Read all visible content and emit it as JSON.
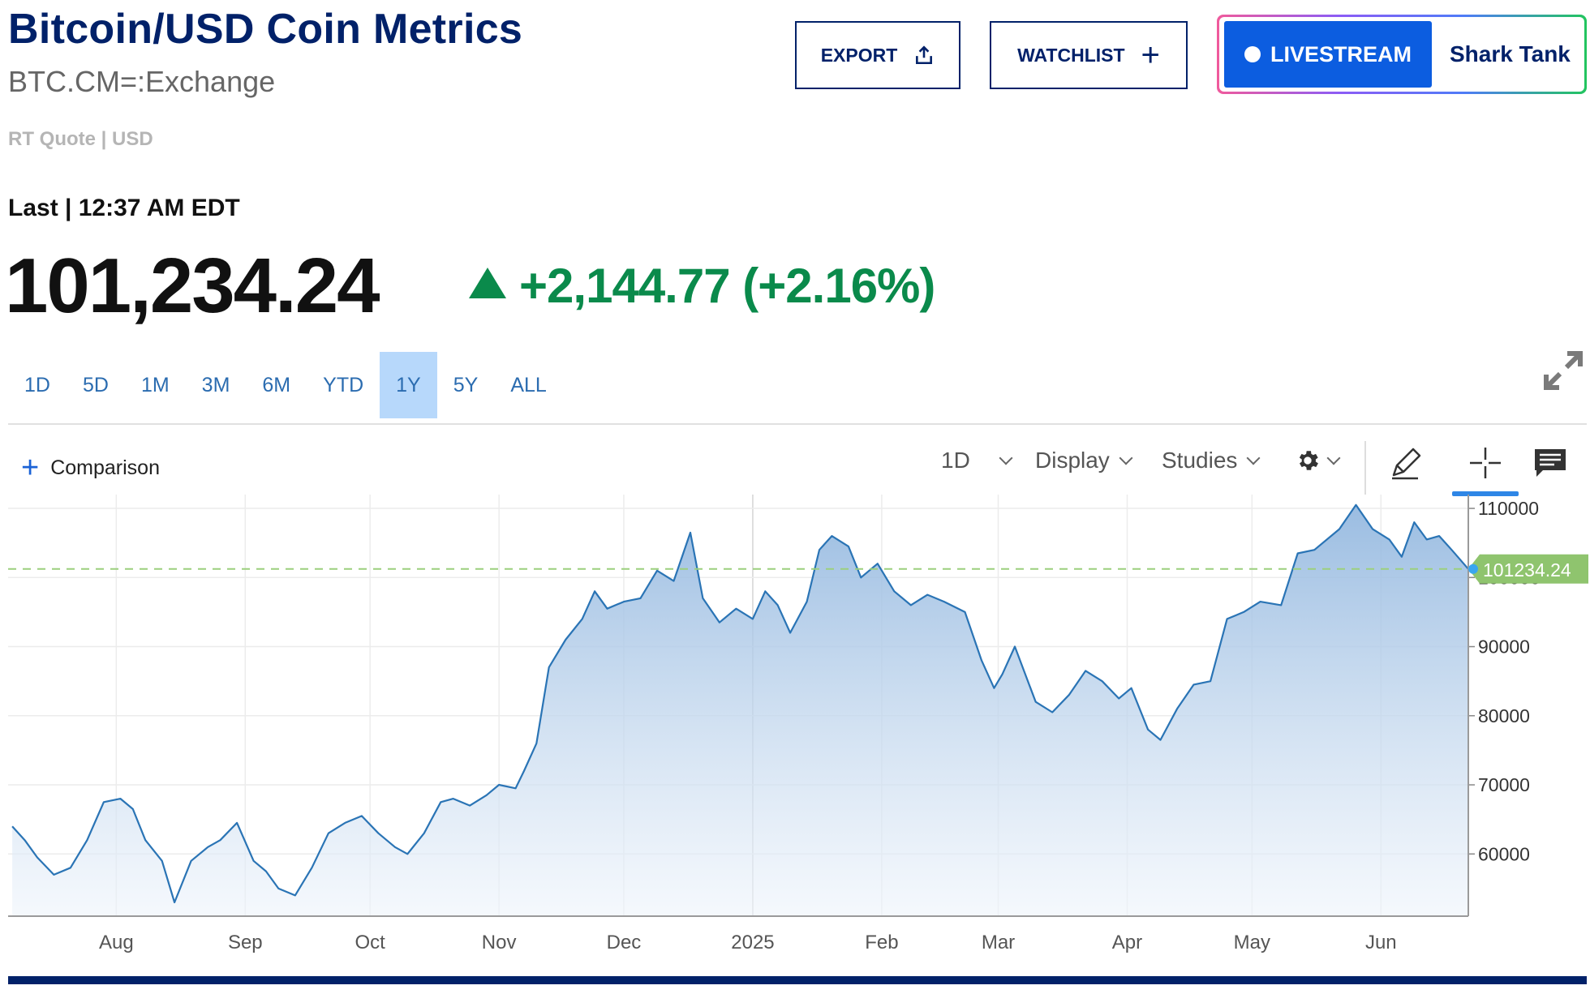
{
  "header": {
    "title": "Bitcoin/USD Coin Metrics",
    "symbol": "BTC.CM=:Exchange",
    "quote_type": "RT Quote | USD",
    "last_label": "Last | 12:37 AM EDT",
    "price": "101,234.24",
    "change": "+2,144.77 (+2.16%)"
  },
  "actions": {
    "export_label": "EXPORT",
    "watchlist_label": "WATCHLIST",
    "livestream_label": "LIVESTREAM",
    "show_name": "Shark Tank"
  },
  "ranges": [
    {
      "label": "1D",
      "active": false
    },
    {
      "label": "5D",
      "active": false
    },
    {
      "label": "1M",
      "active": false
    },
    {
      "label": "3M",
      "active": false
    },
    {
      "label": "6M",
      "active": false
    },
    {
      "label": "YTD",
      "active": false
    },
    {
      "label": "1Y",
      "active": true
    },
    {
      "label": "5Y",
      "active": false
    },
    {
      "label": "ALL",
      "active": false
    }
  ],
  "toolbar": {
    "comparison_label": "Comparison",
    "interval_label": "1D",
    "display_label": "Display",
    "studies_label": "Studies"
  },
  "colors": {
    "brand": "#012169",
    "positive": "#0a8a4b",
    "line": "#2a74b5",
    "last_price_tag": "#8fc46e",
    "active_range": "#b7d8fb"
  },
  "chart_data": {
    "type": "area",
    "x_tick_labels": [
      "Aug",
      "Sep",
      "Oct",
      "Nov",
      "Dec",
      "2025",
      "Feb",
      "Mar",
      "Apr",
      "May",
      "Jun"
    ],
    "y_ticks": [
      60000,
      70000,
      80000,
      90000,
      100000,
      110000
    ],
    "ylim": [
      51000,
      112000
    ],
    "last_value": 101234.24,
    "last_value_label": "101234.24",
    "grid": true,
    "series": [
      {
        "x": [
          "2024-07-07",
          "2024-07-10",
          "2024-07-13",
          "2024-07-17",
          "2024-07-21",
          "2024-07-25",
          "2024-07-29",
          "2024-08-02",
          "2024-08-05",
          "2024-08-08",
          "2024-08-12",
          "2024-08-15",
          "2024-08-19",
          "2024-08-23",
          "2024-08-26",
          "2024-08-30",
          "2024-09-03",
          "2024-09-06",
          "2024-09-09",
          "2024-09-13",
          "2024-09-17",
          "2024-09-21",
          "2024-09-25",
          "2024-09-29",
          "2024-10-03",
          "2024-10-07",
          "2024-10-10",
          "2024-10-14",
          "2024-10-18",
          "2024-10-21",
          "2024-10-25",
          "2024-10-29",
          "2024-11-01",
          "2024-11-05",
          "2024-11-07",
          "2024-11-10",
          "2024-11-13",
          "2024-11-17",
          "2024-11-21",
          "2024-11-24",
          "2024-11-27",
          "2024-12-01",
          "2024-12-05",
          "2024-12-09",
          "2024-12-13",
          "2024-12-17",
          "2024-12-20",
          "2024-12-24",
          "2024-12-28",
          "2025-01-01",
          "2025-01-04",
          "2025-01-07",
          "2025-01-10",
          "2025-01-14",
          "2025-01-17",
          "2025-01-20",
          "2025-01-24",
          "2025-01-27",
          "2025-01-31",
          "2025-02-04",
          "2025-02-08",
          "2025-02-12",
          "2025-02-16",
          "2025-02-21",
          "2025-02-25",
          "2025-02-28",
          "2025-03-02",
          "2025-03-05",
          "2025-03-10",
          "2025-03-14",
          "2025-03-18",
          "2025-03-22",
          "2025-03-26",
          "2025-03-30",
          "2025-04-02",
          "2025-04-06",
          "2025-04-09",
          "2025-04-13",
          "2025-04-17",
          "2025-04-21",
          "2025-04-25",
          "2025-04-29",
          "2025-05-03",
          "2025-05-08",
          "2025-05-12",
          "2025-05-16",
          "2025-05-22",
          "2025-05-26",
          "2025-05-30",
          "2025-06-03",
          "2025-06-06",
          "2025-06-09",
          "2025-06-12",
          "2025-06-15",
          "2025-06-18",
          "2025-06-22"
        ],
        "values": [
          64000,
          62000,
          59500,
          57000,
          58000,
          62000,
          67500,
          68000,
          66500,
          62000,
          59000,
          53000,
          59000,
          61000,
          62000,
          64500,
          59000,
          57500,
          55000,
          54000,
          58000,
          63000,
          64500,
          65500,
          63000,
          61000,
          60000,
          63000,
          67500,
          68000,
          67000,
          68500,
          70000,
          69500,
          72000,
          76000,
          87000,
          91000,
          94000,
          98000,
          95500,
          96500,
          97000,
          101000,
          99500,
          106500,
          97000,
          93500,
          95500,
          94000,
          98000,
          96000,
          92000,
          96500,
          104000,
          106000,
          104500,
          100000,
          102000,
          98000,
          96000,
          97500,
          96500,
          95000,
          88000,
          84000,
          86000,
          90000,
          82000,
          80500,
          83000,
          86500,
          85000,
          82500,
          84000,
          78000,
          76500,
          81000,
          84500,
          85000,
          94000,
          95000,
          96500,
          96000,
          103500,
          104000,
          107000,
          110500,
          107000,
          105500,
          103000,
          108000,
          105500,
          106000,
          104000,
          101234
        ]
      }
    ]
  }
}
